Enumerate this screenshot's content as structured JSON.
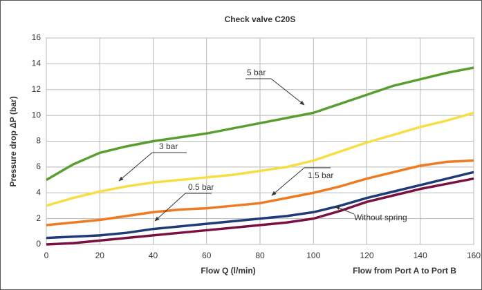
{
  "chart_data": {
    "type": "line",
    "title": "Check valve C20S",
    "xlabel": "Flow Q  (l/min)",
    "xlabel2": "Flow from Port A to Port B",
    "ylabel": "Pressure drop ΔP  (bar)",
    "x": [
      0,
      10,
      20,
      30,
      40,
      50,
      60,
      70,
      80,
      90,
      100,
      110,
      120,
      130,
      140,
      150,
      160
    ],
    "series": [
      {
        "name": "5 bar",
        "color": "#5a9e2f",
        "values": [
          5.0,
          6.2,
          7.1,
          7.6,
          8.0,
          8.3,
          8.6,
          9.0,
          9.4,
          9.8,
          10.2,
          10.9,
          11.6,
          12.3,
          12.8,
          13.3,
          13.7
        ]
      },
      {
        "name": "3 bar",
        "color": "#f5df45",
        "values": [
          3.0,
          3.6,
          4.1,
          4.5,
          4.8,
          5.0,
          5.2,
          5.4,
          5.7,
          6.0,
          6.5,
          7.2,
          7.9,
          8.5,
          9.1,
          9.6,
          10.2
        ]
      },
      {
        "name": "1.5 bar",
        "color": "#ee7a22",
        "values": [
          1.5,
          1.7,
          1.9,
          2.2,
          2.5,
          2.7,
          2.8,
          3.0,
          3.2,
          3.6,
          4.0,
          4.5,
          5.1,
          5.6,
          6.1,
          6.4,
          6.5
        ]
      },
      {
        "name": "0.5 bar",
        "color": "#1f3a7a",
        "values": [
          0.5,
          0.6,
          0.7,
          0.9,
          1.2,
          1.4,
          1.6,
          1.8,
          2.0,
          2.2,
          2.5,
          3.0,
          3.6,
          4.1,
          4.6,
          5.1,
          5.6
        ]
      },
      {
        "name": "Without spring",
        "color": "#7a1040",
        "values": [
          0.0,
          0.1,
          0.3,
          0.5,
          0.7,
          0.9,
          1.1,
          1.3,
          1.5,
          1.7,
          2.0,
          2.6,
          3.3,
          3.8,
          4.3,
          4.7,
          5.1
        ]
      }
    ],
    "xlim": [
      0,
      160
    ],
    "ylim": [
      0,
      16
    ],
    "xticks": [
      0,
      20,
      40,
      60,
      80,
      100,
      120,
      140,
      160
    ],
    "yticks": [
      0,
      2,
      4,
      6,
      8,
      10,
      12,
      14,
      16
    ],
    "grid": true
  }
}
